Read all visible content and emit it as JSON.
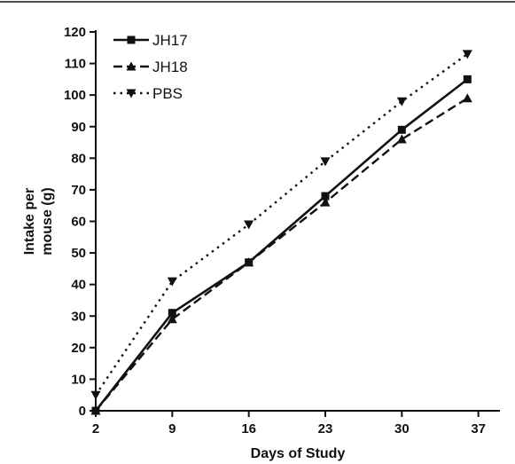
{
  "chart_data": {
    "type": "line",
    "xlabel": "Days of Study",
    "ylabel_lines": [
      "Intake per",
      "mouse (g)"
    ],
    "x": [
      2,
      9,
      16,
      23,
      30,
      36
    ],
    "xticks": [
      2,
      9,
      16,
      23,
      30,
      37
    ],
    "xlim": [
      2,
      38
    ],
    "ylim": [
      0,
      120
    ],
    "yticks": [
      0,
      10,
      20,
      30,
      40,
      50,
      60,
      70,
      80,
      90,
      100,
      110,
      120
    ],
    "grid": false,
    "legend_position": "top-left",
    "series": [
      {
        "name": "JH17",
        "marker": "square",
        "line_style": "solid",
        "color": "#111111",
        "values": [
          0,
          31,
          47,
          68,
          89,
          105
        ]
      },
      {
        "name": "JH18",
        "marker": "triangle-up",
        "line_style": "dashed",
        "color": "#111111",
        "values": [
          0,
          29,
          47,
          66,
          86,
          99
        ]
      },
      {
        "name": "PBS",
        "marker": "triangle-down",
        "line_style": "dotted",
        "color": "#111111",
        "values": [
          5,
          41,
          59,
          79,
          98,
          113
        ]
      }
    ]
  }
}
